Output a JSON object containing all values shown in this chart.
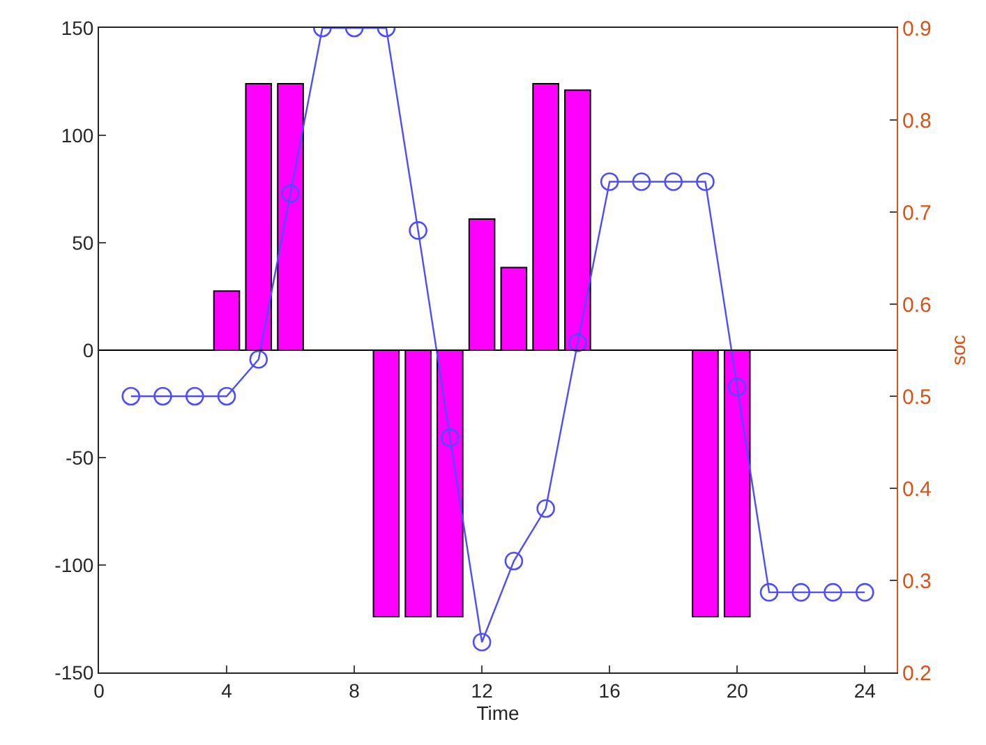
{
  "chart_data": {
    "type": "bar",
    "xlabel": "Time",
    "y2label": "soc",
    "x": [
      1,
      2,
      3,
      4,
      5,
      6,
      7,
      8,
      9,
      10,
      11,
      12,
      13,
      14,
      15,
      16,
      17,
      18,
      19,
      20,
      21,
      22,
      23,
      24
    ],
    "series": [
      {
        "color": "#ff00ff",
        "values": [
          null,
          null,
          null,
          27.5,
          124,
          124,
          null,
          null,
          -124,
          -124,
          -124,
          61,
          38.5,
          124,
          121,
          null,
          null,
          null,
          -124,
          -124,
          null,
          null,
          null,
          null
        ]
      },
      {
        "type": "line",
        "axis": "y2",
        "color": "#4d4dff",
        "marker": "circle",
        "values": [
          0.5,
          0.5,
          0.5,
          0.5,
          0.54,
          0.72,
          0.9,
          0.9,
          0.9,
          0.68,
          0.455,
          0.233,
          0.321,
          0.378,
          0.558,
          0.733,
          0.733,
          0.733,
          0.733,
          0.51,
          0.287,
          0.287,
          0.287,
          0.287
        ]
      }
    ],
    "xlim": [
      0,
      25
    ],
    "xticks": [
      0,
      4,
      8,
      12,
      16,
      20,
      24
    ],
    "ylim": [
      -150,
      150
    ],
    "yticks": [
      -150,
      -100,
      -50,
      0,
      50,
      100,
      150
    ],
    "y2lim": [
      0.2,
      0.9
    ],
    "y2ticks": [
      0.2,
      0.3,
      0.4,
      0.5,
      0.6,
      0.7,
      0.8,
      0.9
    ],
    "ref_lines": [
      {
        "axis": "y",
        "value": 0,
        "color": "#000000"
      }
    ]
  }
}
